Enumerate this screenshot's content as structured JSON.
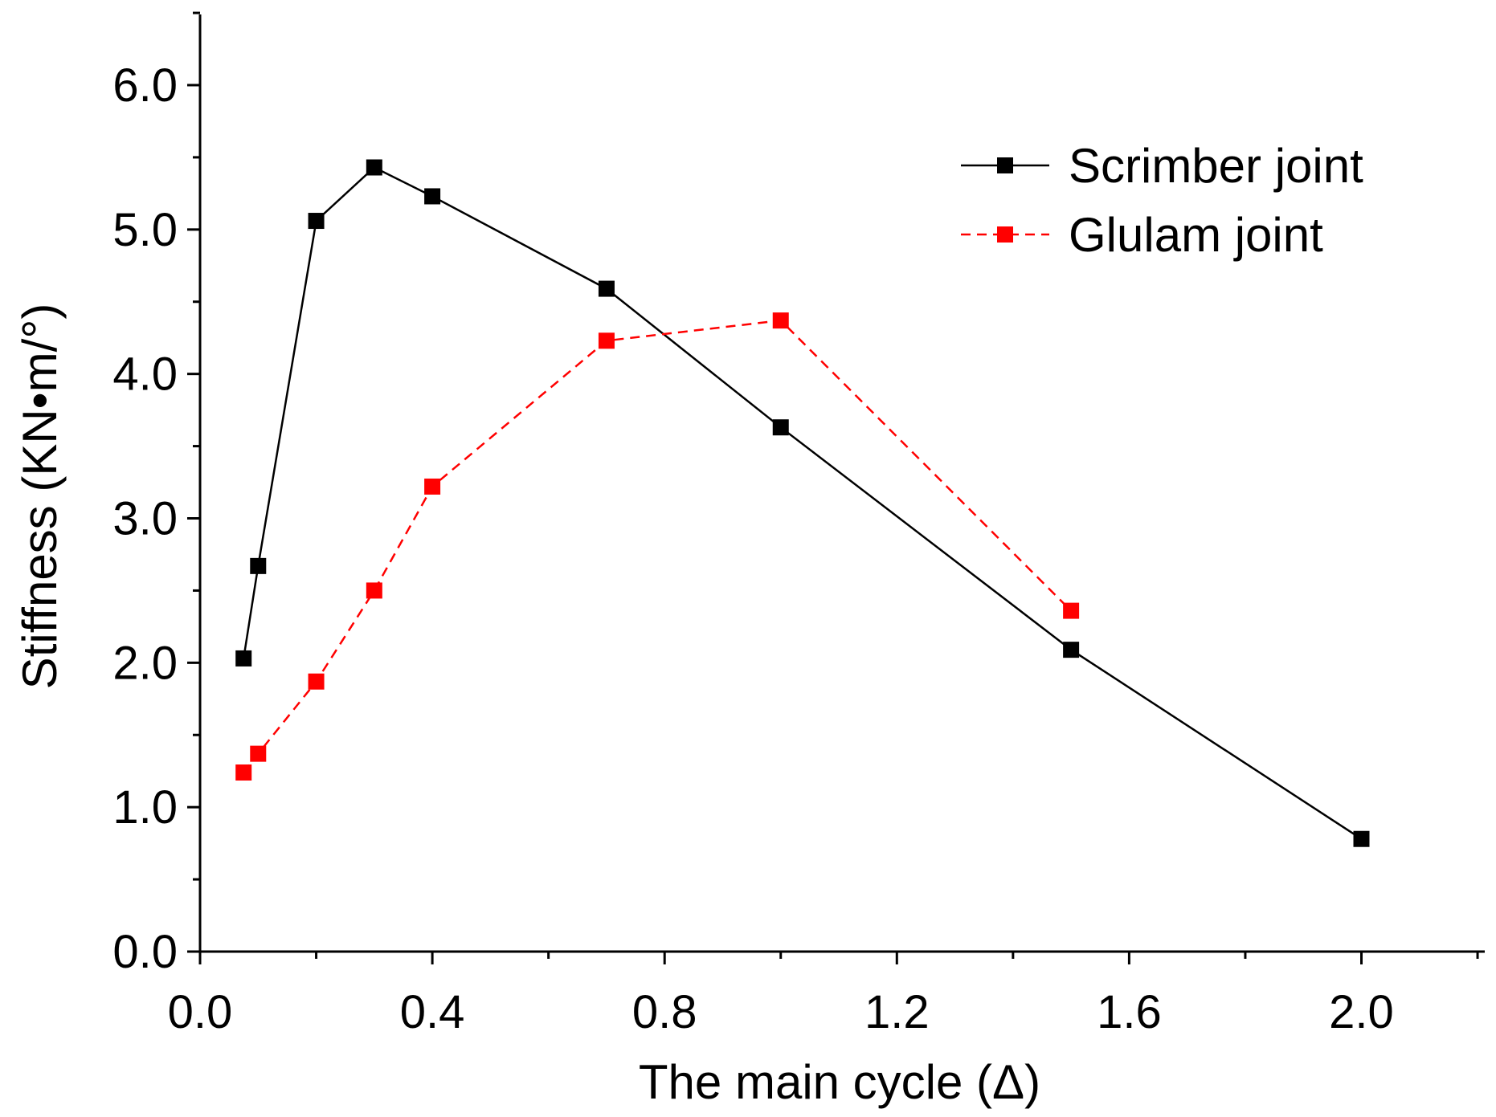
{
  "chart_data": {
    "type": "line",
    "title": "",
    "xlabel": "The main cycle (Δ)",
    "ylabel": "Stiffness (KN•m/°)",
    "xlim": [
      0.0,
      2.2
    ],
    "ylim": [
      0.0,
      6.5
    ],
    "x_ticks": [
      0.0,
      0.4,
      0.8,
      1.2,
      1.6,
      2.0
    ],
    "x_tick_labels": [
      "0.0",
      "0.4",
      "0.8",
      "1.2",
      "1.6",
      "2.0"
    ],
    "y_ticks": [
      0.0,
      1.0,
      2.0,
      3.0,
      4.0,
      5.0,
      6.0
    ],
    "y_tick_labels": [
      "0.0",
      "1.0",
      "2.0",
      "3.0",
      "4.0",
      "5.0",
      "6.0"
    ],
    "grid": false,
    "legend_position": "top-right",
    "series": [
      {
        "name": "Scrimber joint",
        "color": "#000000",
        "line_style": "solid",
        "marker": "square",
        "x": [
          0.075,
          0.1,
          0.2,
          0.3,
          0.4,
          0.7,
          1.0,
          1.5,
          2.0
        ],
        "values": [
          2.03,
          2.67,
          5.06,
          5.43,
          5.23,
          4.59,
          3.63,
          2.09,
          0.78
        ]
      },
      {
        "name": "Glulam joint",
        "color": "#ff0000",
        "line_style": "dashed",
        "marker": "square",
        "x": [
          0.075,
          0.1,
          0.2,
          0.3,
          0.4,
          0.7,
          1.0,
          1.5
        ],
        "values": [
          1.24,
          1.37,
          1.87,
          2.5,
          3.22,
          4.23,
          4.37,
          2.36
        ]
      }
    ]
  }
}
